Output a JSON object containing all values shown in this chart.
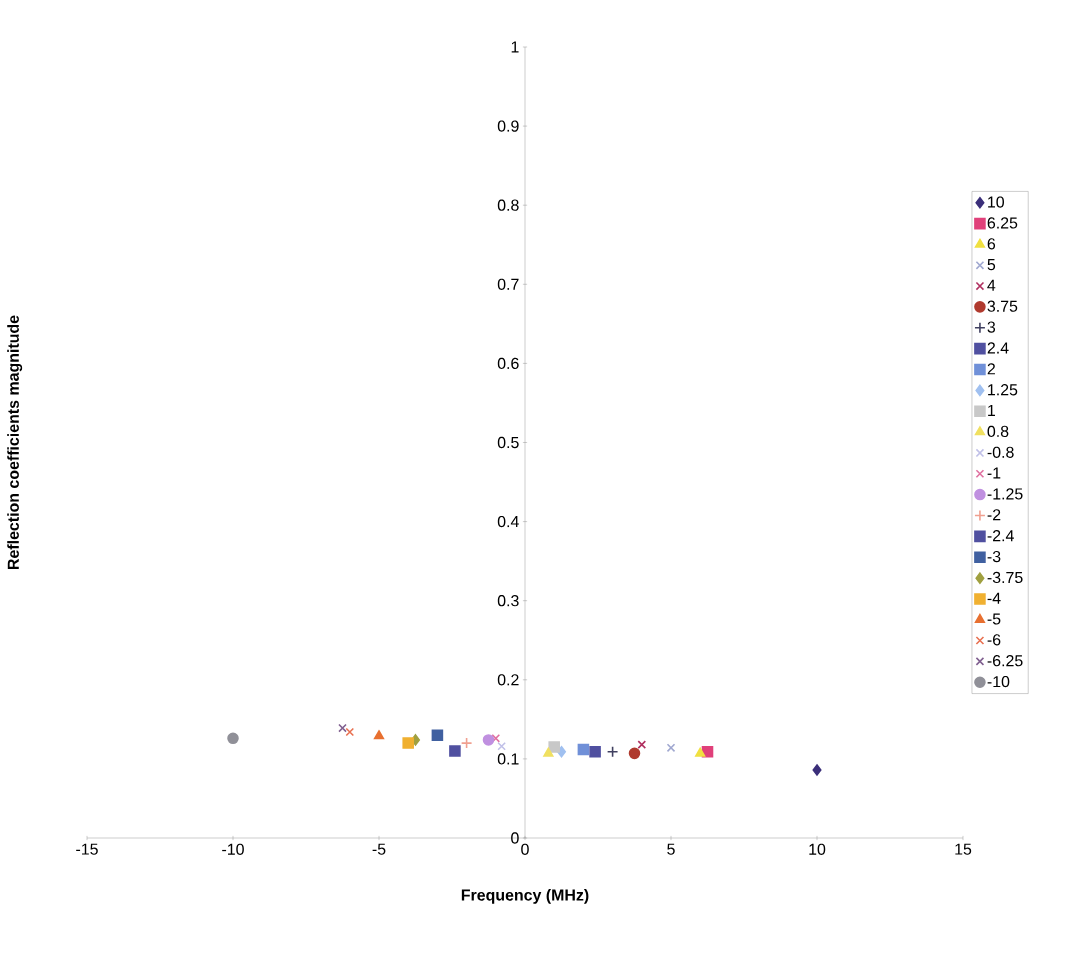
{
  "chart_data": {
    "type": "scatter",
    "xlabel": "Frequency (MHz)",
    "ylabel": "Reflection coefficients magnitude",
    "xlim": [
      -15,
      15
    ],
    "xticks": [
      -15,
      -10,
      -5,
      0,
      5,
      10,
      15
    ],
    "ylim": [
      0,
      1
    ],
    "yticks": [
      0,
      0.1,
      0.2,
      0.3,
      0.4,
      0.5,
      0.6,
      0.7,
      0.8,
      0.9,
      1
    ],
    "grid": false,
    "legend": "right",
    "series": [
      {
        "name": "10",
        "color": "#3b2f7a",
        "marker": "diamond",
        "x": [
          10
        ],
        "values": [
          0.086
        ]
      },
      {
        "name": "6.25",
        "color": "#e0407a",
        "marker": "square",
        "x": [
          6.25
        ],
        "values": [
          0.109
        ]
      },
      {
        "name": "6",
        "color": "#f0e040",
        "marker": "triangle",
        "x": [
          6
        ],
        "values": [
          0.107
        ]
      },
      {
        "name": "5",
        "color": "#a0a8d0",
        "marker": "cross",
        "x": [
          5
        ],
        "values": [
          0.114
        ]
      },
      {
        "name": "4",
        "color": "#b03060",
        "marker": "cross",
        "x": [
          4
        ],
        "values": [
          0.118
        ]
      },
      {
        "name": "3.75",
        "color": "#b03a2e",
        "marker": "circle",
        "x": [
          3.75
        ],
        "values": [
          0.107
        ]
      },
      {
        "name": "3",
        "color": "#404060",
        "marker": "plus",
        "x": [
          3
        ],
        "values": [
          0.109
        ]
      },
      {
        "name": "2.4",
        "color": "#5050a0",
        "marker": "square",
        "x": [
          2.4
        ],
        "values": [
          0.109
        ]
      },
      {
        "name": "2",
        "color": "#7090d8",
        "marker": "square",
        "x": [
          2
        ],
        "values": [
          0.112
        ]
      },
      {
        "name": "1.25",
        "color": "#a0c0f0",
        "marker": "diamond",
        "x": [
          1.25
        ],
        "values": [
          0.109
        ]
      },
      {
        "name": "1",
        "color": "#c8c8c8",
        "marker": "square",
        "x": [
          1
        ],
        "values": [
          0.115
        ]
      },
      {
        "name": "0.8",
        "color": "#f0e060",
        "marker": "triangle",
        "x": [
          0.8
        ],
        "values": [
          0.107
        ]
      },
      {
        "name": "-0.8",
        "color": "#c0c0e8",
        "marker": "cross",
        "x": [
          -0.8
        ],
        "values": [
          0.116
        ]
      },
      {
        "name": "-1",
        "color": "#e070a0",
        "marker": "cross",
        "x": [
          -1
        ],
        "values": [
          0.126
        ]
      },
      {
        "name": "-1.25",
        "color": "#c090e0",
        "marker": "circle",
        "x": [
          -1.25
        ],
        "values": [
          0.124
        ]
      },
      {
        "name": "-2",
        "color": "#f0a090",
        "marker": "plus",
        "x": [
          -2
        ],
        "values": [
          0.12
        ]
      },
      {
        "name": "-2.4",
        "color": "#5050a0",
        "marker": "square",
        "x": [
          -2.4
        ],
        "values": [
          0.11
        ]
      },
      {
        "name": "-3",
        "color": "#4060a0",
        "marker": "square",
        "x": [
          -3
        ],
        "values": [
          0.13
        ]
      },
      {
        "name": "-3.75",
        "color": "#a0a040",
        "marker": "diamond",
        "x": [
          -3.75
        ],
        "values": [
          0.124
        ]
      },
      {
        "name": "-4",
        "color": "#f0b030",
        "marker": "square",
        "x": [
          -4
        ],
        "values": [
          0.12
        ]
      },
      {
        "name": "-5",
        "color": "#e87030",
        "marker": "triangle",
        "x": [
          -5
        ],
        "values": [
          0.129
        ]
      },
      {
        "name": "-6",
        "color": "#e87050",
        "marker": "cross",
        "x": [
          -6
        ],
        "values": [
          0.134
        ]
      },
      {
        "name": "-6.25",
        "color": "#806090",
        "marker": "cross",
        "x": [
          -6.25
        ],
        "values": [
          0.139
        ]
      },
      {
        "name": "-10",
        "color": "#909098",
        "marker": "circle",
        "x": [
          -10
        ],
        "values": [
          0.126
        ]
      }
    ]
  }
}
